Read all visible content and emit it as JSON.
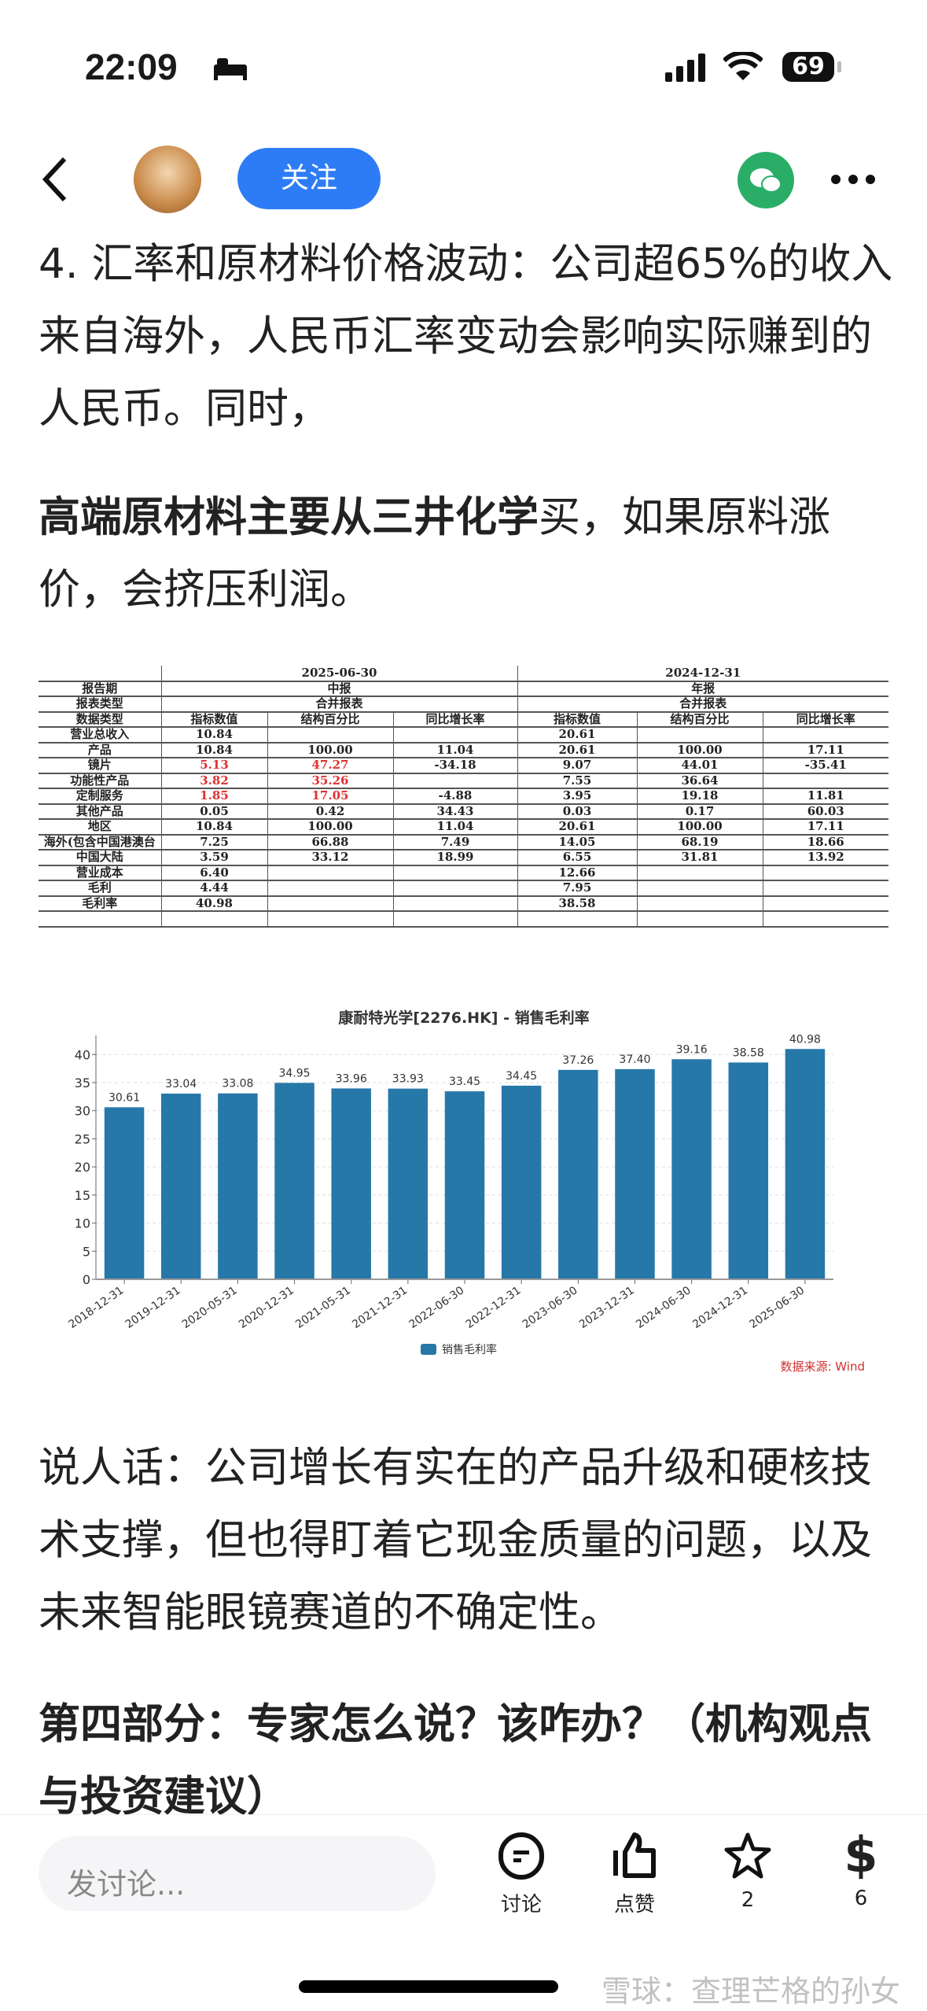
{
  "status_bar": {
    "time": "22:09",
    "battery": "69"
  },
  "nav": {
    "follow_label": "关注"
  },
  "article": {
    "para1": "4. 汇率和原材料价格波动：公司超65%的收入来自海外，人民币汇率变动会影响实际赚到的人民币。同时，",
    "para2_bold": "高端原材料主要从三井化学",
    "para2_rest": "买，如果原料涨价，会挤压利润。",
    "para3": "说人话：公司增长有实在的产品升级和硬核技术支撑，但也得盯着它现金质量的问题，以及未来智能眼镜赛道的不确定性。",
    "heading4": "第四部分：专家怎么说？该咋办？（机构观点与投资建议）"
  },
  "table": {
    "periods": [
      {
        "date": "2025-06-30",
        "report": "中报",
        "type": "合并报表"
      },
      {
        "date": "2024-12-31",
        "report": "年报",
        "type": "合并报表"
      }
    ],
    "row_labels": {
      "period": "报告期",
      "type": "报表类型",
      "data_type": "数据类型"
    },
    "columns": [
      "指标数值",
      "结构百分比",
      "同比增长率"
    ],
    "rows": [
      {
        "label": "营业总收入",
        "a": [
          "10.84",
          "",
          ""
        ],
        "b": [
          "20.61",
          "",
          ""
        ]
      },
      {
        "label": "产品",
        "a": [
          "10.84",
          "100.00",
          "11.04"
        ],
        "b": [
          "20.61",
          "100.00",
          "17.11"
        ]
      },
      {
        "label": "镜片",
        "a": [
          "5.13",
          "47.27",
          "-34.18"
        ],
        "b": [
          "9.07",
          "44.01",
          "-35.41"
        ],
        "red": true
      },
      {
        "label": "功能性产品",
        "a": [
          "3.82",
          "35.26",
          ""
        ],
        "b": [
          "7.55",
          "36.64",
          ""
        ],
        "red": true
      },
      {
        "label": "定制服务",
        "a": [
          "1.85",
          "17.05",
          "-4.88"
        ],
        "b": [
          "3.95",
          "19.18",
          "11.81"
        ],
        "red": true
      },
      {
        "label": "其他产品",
        "a": [
          "0.05",
          "0.42",
          "34.43"
        ],
        "b": [
          "0.03",
          "0.17",
          "60.03"
        ]
      },
      {
        "label": "地区",
        "a": [
          "10.84",
          "100.00",
          "11.04"
        ],
        "b": [
          "20.61",
          "100.00",
          "17.11"
        ]
      },
      {
        "label": "海外(包含中国港澳台",
        "a": [
          "7.25",
          "66.88",
          "7.49"
        ],
        "b": [
          "14.05",
          "68.19",
          "18.66"
        ]
      },
      {
        "label": "中国大陆",
        "a": [
          "3.59",
          "33.12",
          "18.99"
        ],
        "b": [
          "6.55",
          "31.81",
          "13.92"
        ]
      },
      {
        "label": "营业成本",
        "a": [
          "6.40",
          "",
          ""
        ],
        "b": [
          "12.66",
          "",
          ""
        ]
      },
      {
        "label": "毛利",
        "a": [
          "4.44",
          "",
          ""
        ],
        "b": [
          "7.95",
          "",
          ""
        ]
      },
      {
        "label": "毛利率",
        "a": [
          "40.98",
          "",
          ""
        ],
        "b": [
          "38.58",
          "",
          ""
        ]
      }
    ],
    "highlight_color": "#e03030"
  },
  "chart_data": {
    "type": "bar",
    "title": "康耐特光学[2276.HK] - 销售毛利率",
    "categories": [
      "2018-12-31",
      "2019-12-31",
      "2020-05-31",
      "2020-12-31",
      "2021-05-31",
      "2021-12-31",
      "2022-06-30",
      "2022-12-31",
      "2023-06-30",
      "2023-12-31",
      "2024-06-30",
      "2024-12-31",
      "2025-06-30"
    ],
    "series": [
      {
        "name": "销售毛利率",
        "values": [
          30.61,
          33.04,
          33.08,
          34.95,
          33.96,
          33.93,
          33.45,
          34.45,
          37.26,
          37.4,
          39.16,
          38.58,
          40.98
        ],
        "color": "#2678a8"
      }
    ],
    "yticks": [
      0,
      5,
      10,
      15,
      20,
      25,
      30,
      35,
      40
    ],
    "ylim": [
      0,
      42
    ],
    "grid": true,
    "legend": "bottom-center",
    "source": "数据来源: Wind"
  },
  "bottom_bar": {
    "input_placeholder": "发讨论...",
    "discuss": "讨论",
    "like": "点赞",
    "favorite_count": "2",
    "reward_count": "6"
  },
  "watermark": "雪球：查理芒格的孙女"
}
